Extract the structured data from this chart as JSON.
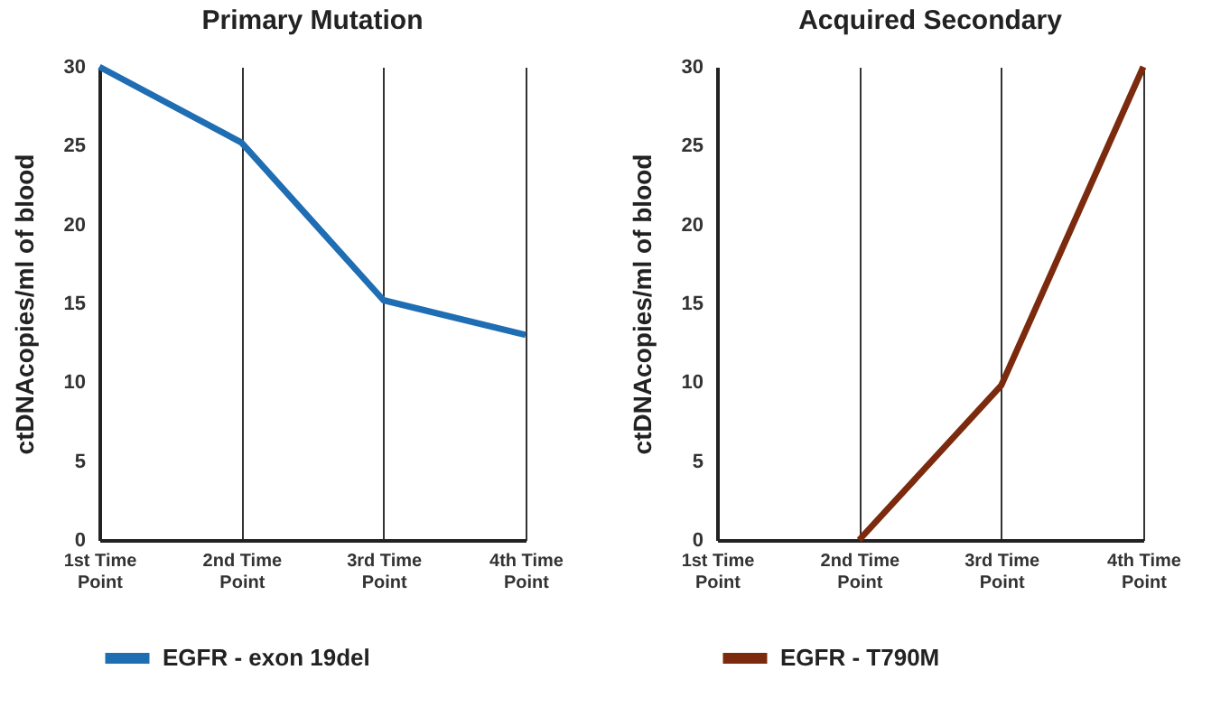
{
  "chart_data": [
    {
      "type": "line",
      "title": "Primary Mutation",
      "ylabel": "ctDNAcopies/ml of blood",
      "categories": [
        "1st Time Point",
        "2nd Time Point",
        "3rd Time Point",
        "4th Time Point"
      ],
      "series": [
        {
          "name": "EGFR - exon 19del",
          "color": "#1f6db3",
          "values": [
            30,
            25.2,
            15.2,
            13
          ]
        }
      ],
      "ylim": [
        0,
        30
      ],
      "yticks": [
        0,
        5,
        10,
        15,
        20,
        25,
        30
      ],
      "grid": "x",
      "legend": "bottom",
      "marker": "none",
      "line_style": "solid"
    },
    {
      "type": "line",
      "title": "Acquired Secondary",
      "ylabel": "ctDNAcopies/ml of blood",
      "categories": [
        "1st Time Point",
        "2nd Time Point",
        "3rd Time Point",
        "4th Time Point"
      ],
      "series": [
        {
          "name": "EGFR - T790M",
          "color": "#7b2a0e",
          "values": [
            null,
            0,
            9.8,
            30
          ]
        }
      ],
      "ylim": [
        0,
        30
      ],
      "yticks": [
        0,
        5,
        10,
        15,
        20,
        25,
        30
      ],
      "grid": "x",
      "legend": "bottom",
      "marker": "none",
      "line_style": "solid"
    }
  ]
}
